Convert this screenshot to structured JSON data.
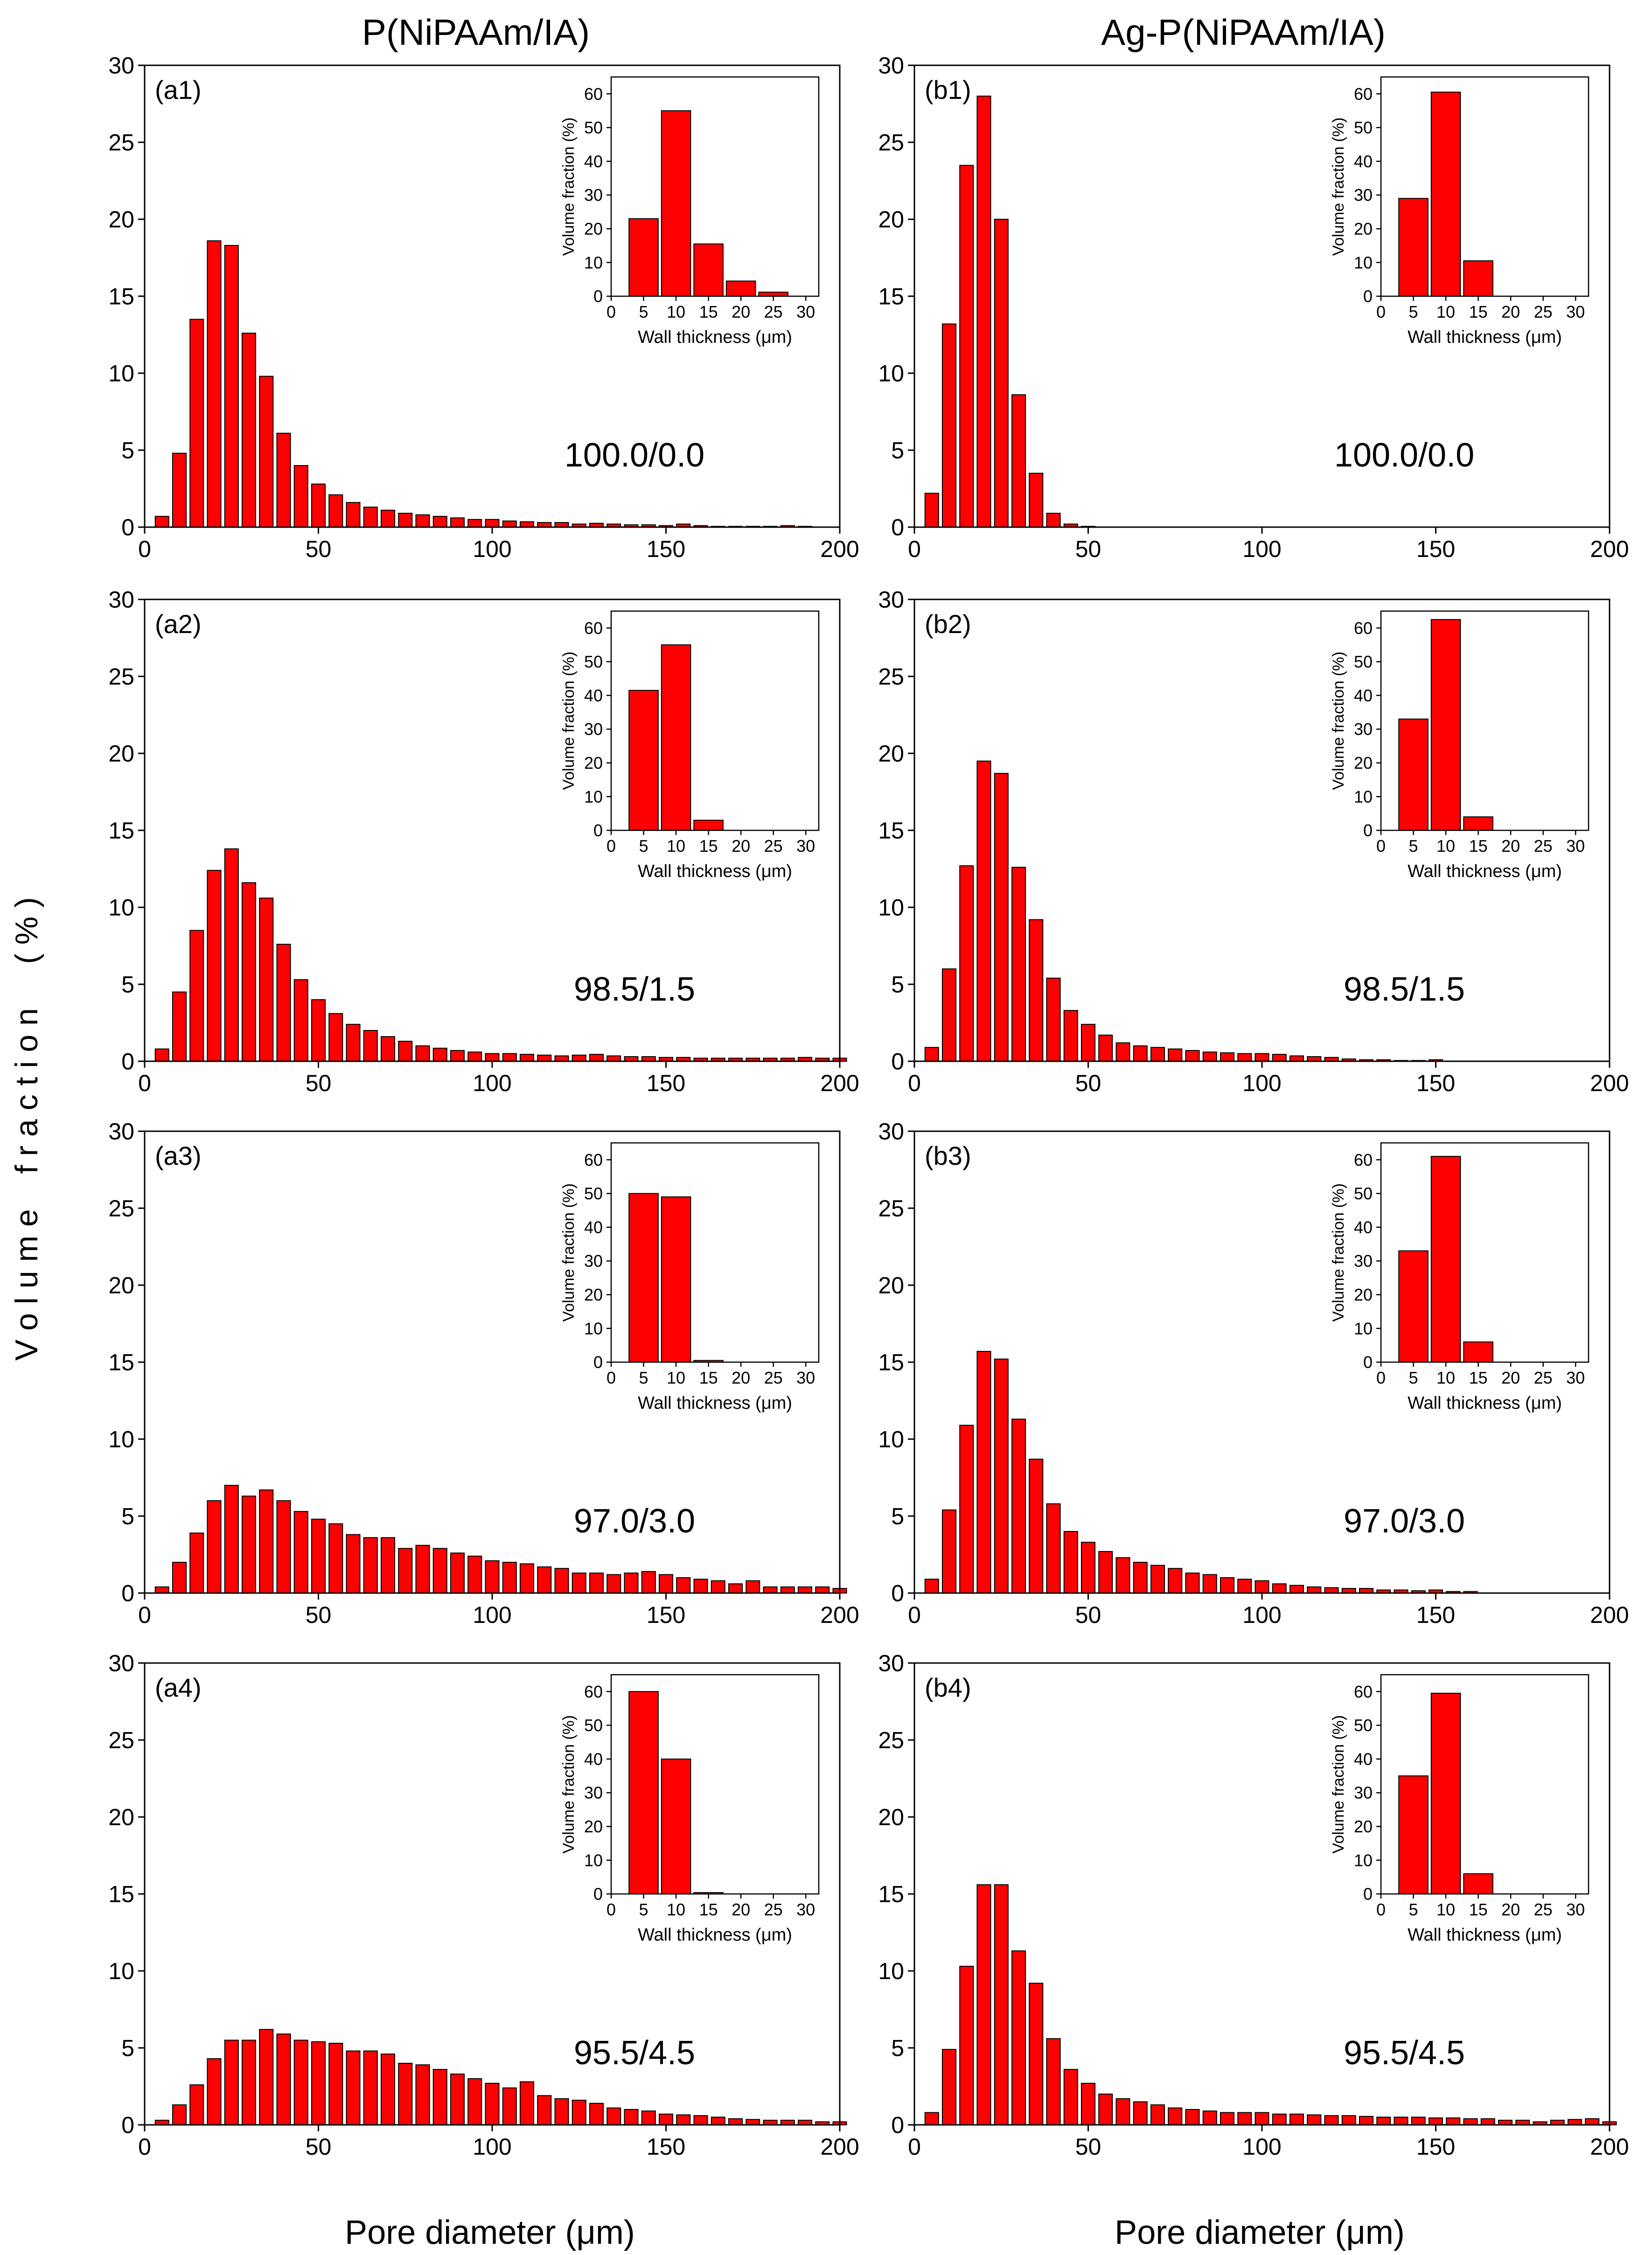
{
  "figure": {
    "column_titles": [
      "P(NiPAAm/IA)",
      "Ag-P(NiPAAm/IA)"
    ],
    "shared_ylabel": "V o l u m e    f r a c t i o n     ( % )",
    "shared_xlabel": "Pore diameter (μm)"
  },
  "colors": {
    "bar_fill": "#ff0000",
    "bar_stroke": "#000000",
    "axis": "#000000"
  },
  "chart_data": [
    {
      "type": "bar",
      "label": "(a1)",
      "annotation": "100.0/0.0",
      "xlim": [
        0,
        200
      ],
      "ylim": [
        0,
        30
      ],
      "xticks": [
        0,
        50,
        100,
        150,
        200
      ],
      "yticks": [
        0,
        5,
        10,
        15,
        20,
        25,
        30
      ],
      "xlabel": "",
      "ylabel": "",
      "x": [
        5,
        10,
        15,
        20,
        25,
        30,
        35,
        40,
        45,
        50,
        55,
        60,
        65,
        70,
        75,
        80,
        85,
        90,
        95,
        100,
        105,
        110,
        115,
        120,
        125,
        130,
        135,
        140,
        145,
        150,
        155,
        160,
        165,
        170,
        175,
        180,
        185,
        190,
        195,
        200
      ],
      "values": [
        0.7,
        4.8,
        13.5,
        18.6,
        18.3,
        12.6,
        9.8,
        6.1,
        4.0,
        2.8,
        2.1,
        1.6,
        1.3,
        1.1,
        0.9,
        0.8,
        0.7,
        0.6,
        0.5,
        0.5,
        0.4,
        0.35,
        0.3,
        0.3,
        0.2,
        0.25,
        0.2,
        0.15,
        0.15,
        0.1,
        0.2,
        0.1,
        0.05,
        0.05,
        0.05,
        0.05,
        0.1,
        0.05,
        0,
        0
      ],
      "inset": {
        "type": "bar",
        "xlim": [
          0,
          32
        ],
        "ylim": [
          0,
          65
        ],
        "xticks": [
          0,
          5,
          10,
          15,
          20,
          25,
          30
        ],
        "yticks": [
          0,
          10,
          20,
          30,
          40,
          50,
          60
        ],
        "xlabel": "Wall thickness (μm)",
        "ylabel": "Volume fraction (%)",
        "x": [
          5,
          10,
          15,
          20,
          25
        ],
        "values": [
          23,
          55,
          15.5,
          4.5,
          1.2
        ]
      }
    },
    {
      "type": "bar",
      "label": "(b1)",
      "annotation": "100.0/0.0",
      "xlim": [
        0,
        200
      ],
      "ylim": [
        0,
        30
      ],
      "xticks": [
        0,
        50,
        100,
        150,
        200
      ],
      "yticks": [
        0,
        5,
        10,
        15,
        20,
        25,
        30
      ],
      "xlabel": "",
      "ylabel": "",
      "x": [
        5,
        10,
        15,
        20,
        25,
        30,
        35,
        40,
        45,
        50
      ],
      "values": [
        2.2,
        13.2,
        23.5,
        28.0,
        20.0,
        8.6,
        3.5,
        0.9,
        0.2,
        0.05
      ],
      "inset": {
        "type": "bar",
        "xlim": [
          0,
          32
        ],
        "ylim": [
          0,
          65
        ],
        "xticks": [
          0,
          5,
          10,
          15,
          20,
          25,
          30
        ],
        "yticks": [
          0,
          10,
          20,
          30,
          40,
          50,
          60
        ],
        "xlabel": "Wall thickness (μm)",
        "ylabel": "Volume fraction (%)",
        "x": [
          5,
          10,
          15
        ],
        "values": [
          29,
          60.5,
          10.5
        ]
      }
    },
    {
      "type": "bar",
      "label": "(a2)",
      "annotation": "98.5/1.5",
      "xlim": [
        0,
        200
      ],
      "ylim": [
        0,
        30
      ],
      "xticks": [
        0,
        50,
        100,
        150,
        200
      ],
      "yticks": [
        0,
        5,
        10,
        15,
        20,
        25,
        30
      ],
      "xlabel": "",
      "ylabel": "",
      "x": [
        5,
        10,
        15,
        20,
        25,
        30,
        35,
        40,
        45,
        50,
        55,
        60,
        65,
        70,
        75,
        80,
        85,
        90,
        95,
        100,
        105,
        110,
        115,
        120,
        125,
        130,
        135,
        140,
        145,
        150,
        155,
        160,
        165,
        170,
        175,
        180,
        185,
        190,
        195,
        200
      ],
      "values": [
        0.8,
        4.5,
        8.5,
        12.4,
        13.8,
        11.6,
        10.6,
        7.6,
        5.3,
        4.0,
        3.1,
        2.4,
        2.0,
        1.6,
        1.3,
        1.0,
        0.85,
        0.7,
        0.6,
        0.5,
        0.5,
        0.45,
        0.4,
        0.35,
        0.4,
        0.45,
        0.35,
        0.3,
        0.3,
        0.25,
        0.25,
        0.2,
        0.2,
        0.2,
        0.2,
        0.2,
        0.2,
        0.25,
        0.2,
        0.2
      ],
      "inset": {
        "type": "bar",
        "xlim": [
          0,
          32
        ],
        "ylim": [
          0,
          65
        ],
        "xticks": [
          0,
          5,
          10,
          15,
          20,
          25,
          30
        ],
        "yticks": [
          0,
          10,
          20,
          30,
          40,
          50,
          60
        ],
        "xlabel": "Wall thickness (μm)",
        "ylabel": "Volume fraction (%)",
        "x": [
          5,
          10,
          15
        ],
        "values": [
          41.5,
          55,
          3
        ]
      }
    },
    {
      "type": "bar",
      "label": "(b2)",
      "annotation": "98.5/1.5",
      "xlim": [
        0,
        200
      ],
      "ylim": [
        0,
        30
      ],
      "xticks": [
        0,
        50,
        100,
        150,
        200
      ],
      "yticks": [
        0,
        5,
        10,
        15,
        20,
        25,
        30
      ],
      "xlabel": "",
      "ylabel": "",
      "x": [
        5,
        10,
        15,
        20,
        25,
        30,
        35,
        40,
        45,
        50,
        55,
        60,
        65,
        70,
        75,
        80,
        85,
        90,
        95,
        100,
        105,
        110,
        115,
        120,
        125,
        130,
        135,
        140,
        145,
        150
      ],
      "values": [
        0.9,
        6.0,
        12.7,
        19.5,
        18.7,
        12.6,
        9.2,
        5.4,
        3.3,
        2.4,
        1.7,
        1.2,
        1.0,
        0.9,
        0.8,
        0.7,
        0.6,
        0.55,
        0.5,
        0.5,
        0.45,
        0.35,
        0.3,
        0.25,
        0.15,
        0.1,
        0.1,
        0.05,
        0.05,
        0.1
      ],
      "inset": {
        "type": "bar",
        "xlim": [
          0,
          32
        ],
        "ylim": [
          0,
          65
        ],
        "xticks": [
          0,
          5,
          10,
          15,
          20,
          25,
          30
        ],
        "yticks": [
          0,
          10,
          20,
          30,
          40,
          50,
          60
        ],
        "xlabel": "Wall thickness (μm)",
        "ylabel": "Volume fraction (%)",
        "x": [
          5,
          10,
          15
        ],
        "values": [
          33,
          62.5,
          4
        ]
      }
    },
    {
      "type": "bar",
      "label": "(a3)",
      "annotation": "97.0/3.0",
      "xlim": [
        0,
        200
      ],
      "ylim": [
        0,
        30
      ],
      "xticks": [
        0,
        50,
        100,
        150,
        200
      ],
      "yticks": [
        0,
        5,
        10,
        15,
        20,
        25,
        30
      ],
      "xlabel": "",
      "ylabel": "",
      "x": [
        5,
        10,
        15,
        20,
        25,
        30,
        35,
        40,
        45,
        50,
        55,
        60,
        65,
        70,
        75,
        80,
        85,
        90,
        95,
        100,
        105,
        110,
        115,
        120,
        125,
        130,
        135,
        140,
        145,
        150,
        155,
        160,
        165,
        170,
        175,
        180,
        185,
        190,
        195,
        200
      ],
      "values": [
        0.4,
        2.0,
        3.9,
        6.0,
        7.0,
        6.3,
        6.7,
        6.0,
        5.3,
        4.8,
        4.5,
        3.8,
        3.6,
        3.6,
        2.9,
        3.1,
        2.9,
        2.6,
        2.4,
        2.1,
        2.0,
        1.9,
        1.7,
        1.6,
        1.3,
        1.3,
        1.2,
        1.3,
        1.4,
        1.2,
        1.0,
        0.9,
        0.8,
        0.6,
        0.8,
        0.4,
        0.4,
        0.4,
        0.4,
        0.3
      ],
      "inset": {
        "type": "bar",
        "xlim": [
          0,
          32
        ],
        "ylim": [
          0,
          65
        ],
        "xticks": [
          0,
          5,
          10,
          15,
          20,
          25,
          30
        ],
        "yticks": [
          0,
          10,
          20,
          30,
          40,
          50,
          60
        ],
        "xlabel": "Wall thickness (μm)",
        "ylabel": "Volume fraction (%)",
        "x": [
          5,
          10,
          15
        ],
        "values": [
          50,
          49,
          0.5
        ]
      }
    },
    {
      "type": "bar",
      "label": "(b3)",
      "annotation": "97.0/3.0",
      "xlim": [
        0,
        200
      ],
      "ylim": [
        0,
        30
      ],
      "xticks": [
        0,
        50,
        100,
        150,
        200
      ],
      "yticks": [
        0,
        5,
        10,
        15,
        20,
        25,
        30
      ],
      "xlabel": "",
      "ylabel": "",
      "x": [
        5,
        10,
        15,
        20,
        25,
        30,
        35,
        40,
        45,
        50,
        55,
        60,
        65,
        70,
        75,
        80,
        85,
        90,
        95,
        100,
        105,
        110,
        115,
        120,
        125,
        130,
        135,
        140,
        145,
        150,
        155,
        160
      ],
      "values": [
        0.9,
        5.4,
        10.9,
        15.7,
        15.2,
        11.3,
        8.7,
        5.8,
        4.0,
        3.3,
        2.7,
        2.3,
        2.0,
        1.8,
        1.6,
        1.3,
        1.2,
        1.0,
        0.9,
        0.8,
        0.6,
        0.5,
        0.4,
        0.35,
        0.3,
        0.3,
        0.2,
        0.2,
        0.15,
        0.2,
        0.1,
        0.1
      ],
      "inset": {
        "type": "bar",
        "xlim": [
          0,
          32
        ],
        "ylim": [
          0,
          65
        ],
        "xticks": [
          0,
          5,
          10,
          15,
          20,
          25,
          30
        ],
        "yticks": [
          0,
          10,
          20,
          30,
          40,
          50,
          60
        ],
        "xlabel": "Wall thickness (μm)",
        "ylabel": "Volume fraction (%)",
        "x": [
          5,
          10,
          15
        ],
        "values": [
          33,
          61,
          6
        ]
      }
    },
    {
      "type": "bar",
      "label": "(a4)",
      "annotation": "95.5/4.5",
      "xlim": [
        0,
        200
      ],
      "ylim": [
        0,
        30
      ],
      "xticks": [
        0,
        50,
        100,
        150,
        200
      ],
      "yticks": [
        0,
        5,
        10,
        15,
        20,
        25,
        30
      ],
      "xlabel": "",
      "ylabel": "",
      "x": [
        5,
        10,
        15,
        20,
        25,
        30,
        35,
        40,
        45,
        50,
        55,
        60,
        65,
        70,
        75,
        80,
        85,
        90,
        95,
        100,
        105,
        110,
        115,
        120,
        125,
        130,
        135,
        140,
        145,
        150,
        155,
        160,
        165,
        170,
        175,
        180,
        185,
        190,
        195,
        200
      ],
      "values": [
        0.3,
        1.3,
        2.6,
        4.3,
        5.5,
        5.5,
        6.2,
        5.9,
        5.5,
        5.4,
        5.3,
        4.8,
        4.8,
        4.6,
        4.0,
        3.9,
        3.6,
        3.3,
        3.0,
        2.7,
        2.4,
        2.8,
        1.9,
        1.7,
        1.6,
        1.4,
        1.1,
        1.0,
        0.9,
        0.7,
        0.65,
        0.6,
        0.5,
        0.4,
        0.35,
        0.3,
        0.3,
        0.3,
        0.2,
        0.2
      ],
      "inset": {
        "type": "bar",
        "xlim": [
          0,
          32
        ],
        "ylim": [
          0,
          65
        ],
        "xticks": [
          0,
          5,
          10,
          15,
          20,
          25,
          30
        ],
        "yticks": [
          0,
          10,
          20,
          30,
          40,
          50,
          60
        ],
        "xlabel": "Wall thickness (μm)",
        "ylabel": "Volume fraction (%)",
        "x": [
          5,
          10,
          15
        ],
        "values": [
          60,
          40,
          0.4
        ]
      }
    },
    {
      "type": "bar",
      "label": "(b4)",
      "annotation": "95.5/4.5",
      "xlim": [
        0,
        200
      ],
      "ylim": [
        0,
        30
      ],
      "xticks": [
        0,
        50,
        100,
        150,
        200
      ],
      "yticks": [
        0,
        5,
        10,
        15,
        20,
        25,
        30
      ],
      "xlabel": "",
      "ylabel": "",
      "x": [
        5,
        10,
        15,
        20,
        25,
        30,
        35,
        40,
        45,
        50,
        55,
        60,
        65,
        70,
        75,
        80,
        85,
        90,
        95,
        100,
        105,
        110,
        115,
        120,
        125,
        130,
        135,
        140,
        145,
        150,
        155,
        160,
        165,
        170,
        175,
        180,
        185,
        190,
        195,
        200
      ],
      "values": [
        0.8,
        4.9,
        10.3,
        15.6,
        15.6,
        11.3,
        9.2,
        5.6,
        3.6,
        2.7,
        2.0,
        1.7,
        1.5,
        1.3,
        1.1,
        1.0,
        0.9,
        0.8,
        0.8,
        0.8,
        0.7,
        0.7,
        0.65,
        0.6,
        0.6,
        0.55,
        0.5,
        0.5,
        0.5,
        0.45,
        0.45,
        0.4,
        0.4,
        0.3,
        0.3,
        0.2,
        0.3,
        0.35,
        0.4,
        0.2
      ],
      "inset": {
        "type": "bar",
        "xlim": [
          0,
          32
        ],
        "ylim": [
          0,
          65
        ],
        "xticks": [
          0,
          5,
          10,
          15,
          20,
          25,
          30
        ],
        "yticks": [
          0,
          10,
          20,
          30,
          40,
          50,
          60
        ],
        "xlabel": "Wall thickness (μm)",
        "ylabel": "Volume fraction (%)",
        "x": [
          5,
          10,
          15
        ],
        "values": [
          35,
          59.5,
          6
        ]
      }
    }
  ]
}
